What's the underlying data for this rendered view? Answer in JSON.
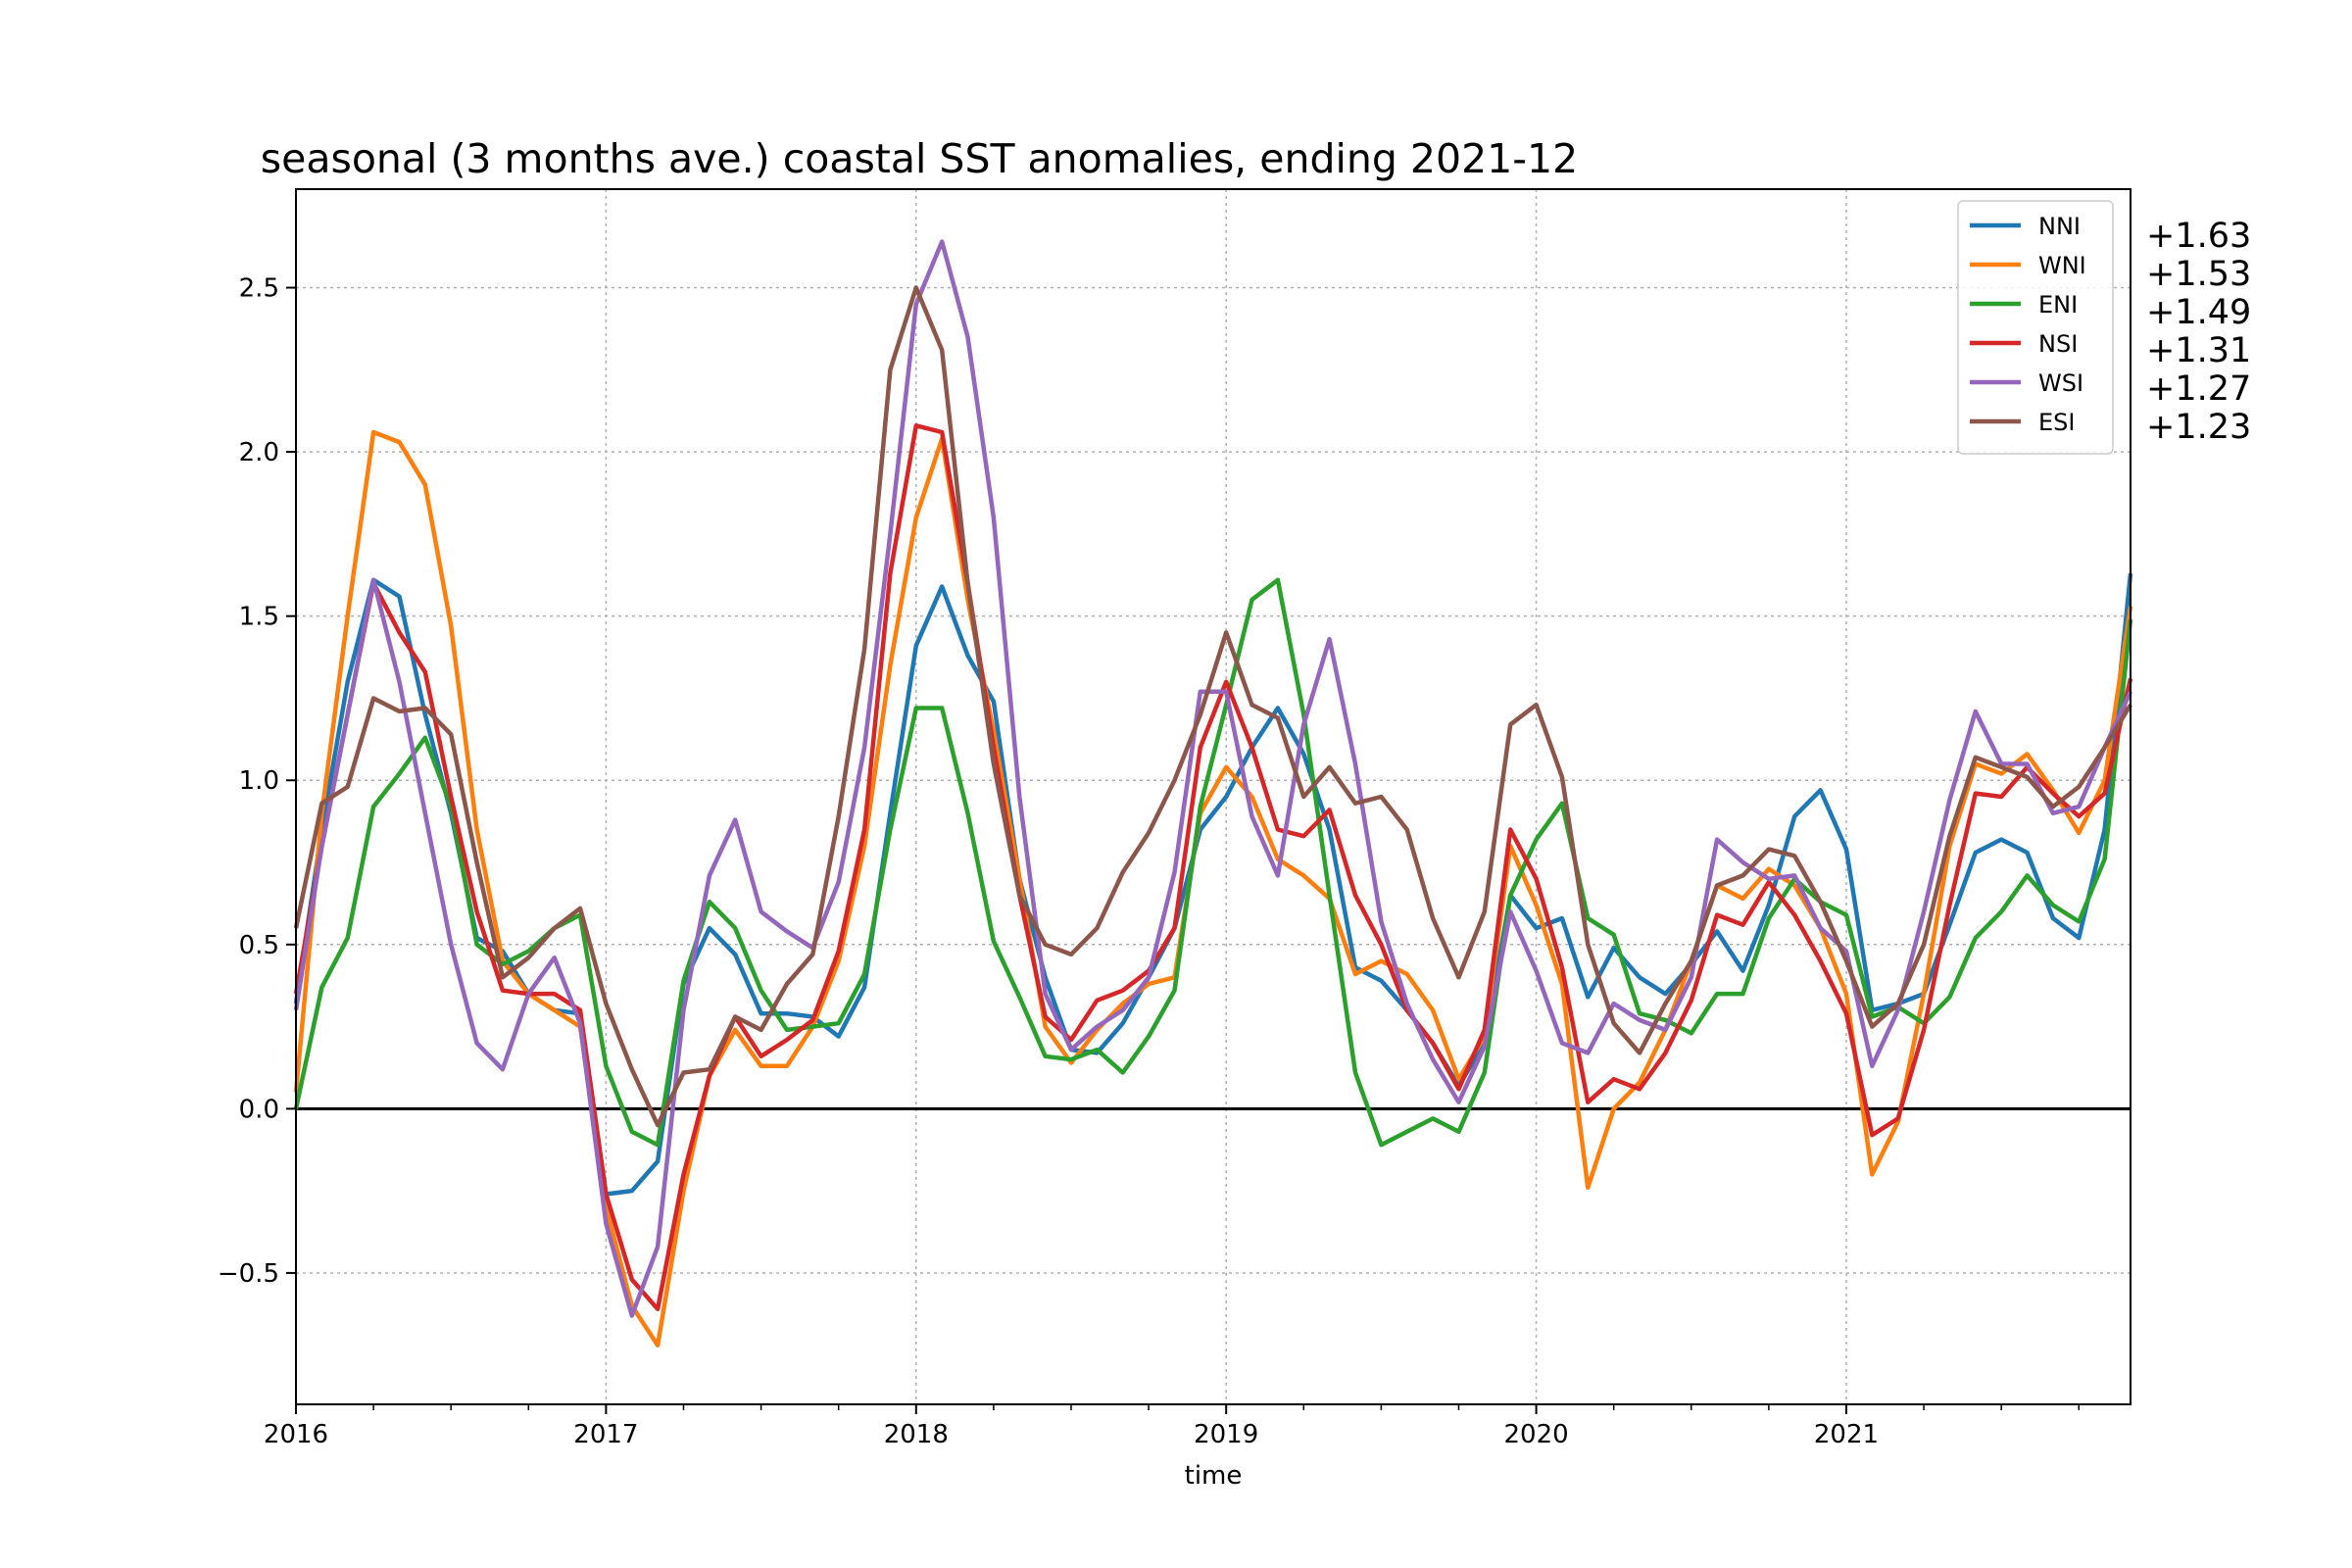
{
  "chart_data": {
    "type": "line",
    "title": "seasonal (3 months ave.) coastal SST anomalies, ending 2021-12",
    "xlabel": "time",
    "ylabel": "",
    "x_start": "2016-01",
    "x_end": "2021-12",
    "xticks": [
      "2016",
      "2017",
      "2018",
      "2019",
      "2020",
      "2021"
    ],
    "ylim": [
      -0.9,
      2.8
    ],
    "yticks": [
      -0.5,
      0.0,
      0.5,
      1.0,
      1.5,
      2.0,
      2.5
    ],
    "ytick_labels": [
      "−0.5",
      "0.0",
      "0.5",
      "1.0",
      "1.5",
      "2.0",
      "2.5"
    ],
    "grid": true,
    "zero_line": true,
    "legend_position": "top-right",
    "series": [
      {
        "name": "NNI",
        "color": "#1f77b4",
        "final_label": "+1.63",
        "values": [
          0.32,
          0.85,
          1.3,
          1.61,
          1.56,
          1.2,
          0.9,
          0.52,
          0.48,
          0.35,
          0.3,
          0.29,
          -0.26,
          -0.25,
          -0.16,
          0.38,
          0.55,
          0.47,
          0.29,
          0.29,
          0.28,
          0.22,
          0.37,
          0.9,
          1.41,
          1.59,
          1.38,
          1.24,
          0.7,
          0.4,
          0.18,
          0.17,
          0.26,
          0.4,
          0.55,
          0.85,
          0.95,
          1.1,
          1.22,
          1.08,
          0.85,
          0.43,
          0.39,
          0.3,
          0.2,
          0.07,
          0.2,
          0.65,
          0.55,
          0.58,
          0.34,
          0.49,
          0.4,
          0.35,
          0.44,
          0.54,
          0.42,
          0.62,
          0.89,
          0.97,
          0.79,
          0.3,
          0.32,
          0.35,
          0.56,
          0.78,
          0.82,
          0.78,
          0.58,
          0.52,
          0.85,
          1.63
        ]
      },
      {
        "name": "WNI",
        "color": "#ff7f0e",
        "final_label": "+1.53",
        "values": [
          0.05,
          0.9,
          1.5,
          2.06,
          2.03,
          1.9,
          1.47,
          0.85,
          0.45,
          0.35,
          0.3,
          0.25,
          -0.3,
          -0.6,
          -0.72,
          -0.25,
          0.1,
          0.24,
          0.13,
          0.13,
          0.25,
          0.45,
          0.8,
          1.35,
          1.8,
          2.04,
          1.55,
          1.15,
          0.7,
          0.25,
          0.14,
          0.24,
          0.32,
          0.38,
          0.4,
          0.9,
          1.04,
          0.95,
          0.76,
          0.71,
          0.64,
          0.41,
          0.45,
          0.41,
          0.3,
          0.09,
          0.22,
          0.8,
          0.62,
          0.38,
          -0.24,
          0.0,
          0.08,
          0.24,
          0.45,
          0.68,
          0.64,
          0.73,
          0.68,
          0.55,
          0.35,
          -0.2,
          -0.04,
          0.35,
          0.8,
          1.05,
          1.02,
          1.08,
          0.97,
          0.84,
          1.0,
          1.53
        ]
      },
      {
        "name": "ENI",
        "color": "#2ca02c",
        "final_label": "+1.49",
        "values": [
          0.0,
          0.37,
          0.52,
          0.92,
          1.02,
          1.13,
          0.92,
          0.5,
          0.44,
          0.48,
          0.55,
          0.59,
          0.13,
          -0.07,
          -0.11,
          0.39,
          0.63,
          0.55,
          0.36,
          0.24,
          0.25,
          0.26,
          0.41,
          0.85,
          1.22,
          1.22,
          0.9,
          0.51,
          0.34,
          0.16,
          0.15,
          0.18,
          0.11,
          0.22,
          0.36,
          0.92,
          1.23,
          1.55,
          1.61,
          1.2,
          0.65,
          0.11,
          -0.11,
          -0.07,
          -0.03,
          -0.07,
          0.11,
          0.65,
          0.82,
          0.93,
          0.58,
          0.53,
          0.29,
          0.27,
          0.23,
          0.35,
          0.35,
          0.58,
          0.7,
          0.63,
          0.59,
          0.28,
          0.31,
          0.26,
          0.34,
          0.52,
          0.6,
          0.71,
          0.62,
          0.57,
          0.76,
          1.49
        ]
      },
      {
        "name": "NSI",
        "color": "#d62728",
        "final_label": "+1.31",
        "values": [
          0.35,
          0.8,
          1.2,
          1.6,
          1.45,
          1.33,
          0.95,
          0.6,
          0.36,
          0.35,
          0.35,
          0.3,
          -0.26,
          -0.52,
          -0.61,
          -0.2,
          0.1,
          0.28,
          0.16,
          0.21,
          0.27,
          0.48,
          0.85,
          1.63,
          2.08,
          2.06,
          1.6,
          1.1,
          0.65,
          0.28,
          0.21,
          0.33,
          0.36,
          0.42,
          0.55,
          1.1,
          1.3,
          1.1,
          0.85,
          0.83,
          0.91,
          0.65,
          0.5,
          0.3,
          0.2,
          0.06,
          0.24,
          0.85,
          0.7,
          0.43,
          0.02,
          0.09,
          0.06,
          0.17,
          0.33,
          0.59,
          0.56,
          0.69,
          0.59,
          0.45,
          0.29,
          -0.08,
          -0.03,
          0.24,
          0.62,
          0.96,
          0.95,
          1.04,
          0.96,
          0.89,
          0.96,
          1.31
        ]
      },
      {
        "name": "WSI",
        "color": "#9467bd",
        "final_label": "+1.27",
        "values": [
          0.3,
          0.8,
          1.2,
          1.61,
          1.3,
          0.9,
          0.5,
          0.2,
          0.12,
          0.35,
          0.46,
          0.26,
          -0.35,
          -0.63,
          -0.42,
          0.3,
          0.71,
          0.88,
          0.6,
          0.54,
          0.49,
          0.69,
          1.1,
          1.75,
          2.45,
          2.64,
          2.35,
          1.8,
          0.95,
          0.35,
          0.18,
          0.25,
          0.3,
          0.4,
          0.72,
          1.27,
          1.27,
          0.89,
          0.71,
          1.17,
          1.43,
          1.05,
          0.57,
          0.32,
          0.15,
          0.02,
          0.19,
          0.6,
          0.42,
          0.2,
          0.17,
          0.32,
          0.27,
          0.24,
          0.4,
          0.82,
          0.75,
          0.7,
          0.71,
          0.55,
          0.48,
          0.13,
          0.3,
          0.6,
          0.94,
          1.21,
          1.05,
          1.05,
          0.9,
          0.92,
          1.1,
          1.27
        ]
      },
      {
        "name": "ESI",
        "color": "#8c564b",
        "final_label": "+1.23",
        "values": [
          0.55,
          0.93,
          0.98,
          1.25,
          1.21,
          1.22,
          1.14,
          0.75,
          0.4,
          0.46,
          0.55,
          0.61,
          0.32,
          0.12,
          -0.05,
          0.11,
          0.12,
          0.28,
          0.24,
          0.38,
          0.47,
          0.89,
          1.4,
          2.25,
          2.5,
          2.31,
          1.6,
          1.05,
          0.65,
          0.5,
          0.47,
          0.55,
          0.72,
          0.84,
          1.0,
          1.2,
          1.45,
          1.23,
          1.19,
          0.95,
          1.04,
          0.93,
          0.95,
          0.85,
          0.58,
          0.4,
          0.6,
          1.17,
          1.23,
          1.01,
          0.5,
          0.26,
          0.17,
          0.32,
          0.45,
          0.68,
          0.71,
          0.79,
          0.77,
          0.63,
          0.45,
          0.25,
          0.32,
          0.5,
          0.83,
          1.07,
          1.04,
          1.01,
          0.92,
          0.98,
          1.1,
          1.23
        ]
      }
    ]
  }
}
